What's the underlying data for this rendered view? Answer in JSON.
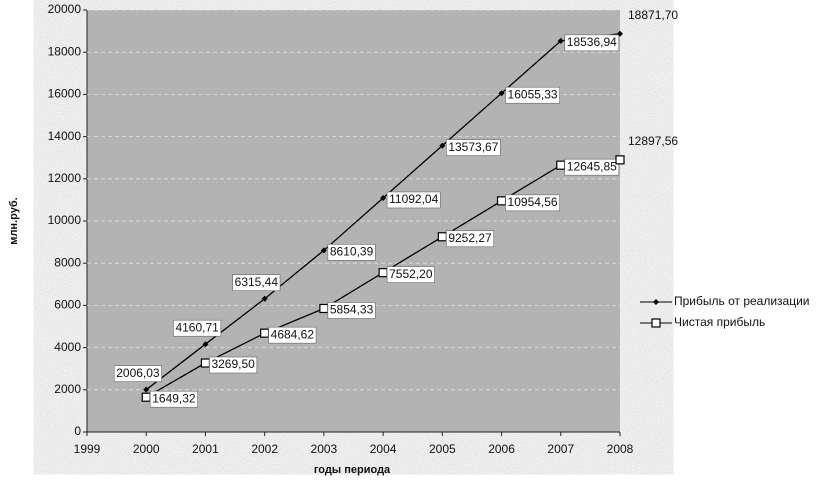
{
  "chart_data": {
    "type": "line",
    "xlabel": "годы периода",
    "ylabel": "млн.руб.",
    "xlim": [
      1999,
      2008
    ],
    "xticks": [
      1999,
      2000,
      2001,
      2002,
      2003,
      2004,
      2005,
      2006,
      2007,
      2008
    ],
    "ylim": [
      0,
      20000
    ],
    "yticks": [
      0,
      2000,
      4000,
      6000,
      8000,
      10000,
      12000,
      14000,
      16000,
      18000,
      20000
    ],
    "grid": true,
    "legend": "right",
    "series": [
      {
        "name": "Прибыль от реализации",
        "color": "#000000",
        "marker": "diamond",
        "x": [
          2000,
          2001,
          2002,
          2003,
          2004,
          2005,
          2006,
          2007,
          2008
        ],
        "values": [
          2006.03,
          4160.71,
          6315.44,
          8610.39,
          11092.04,
          13573.67,
          16055.33,
          18536.94,
          18871.7
        ],
        "value_labels": [
          "2006,03",
          "4160,71",
          "6315,44",
          "8610,39",
          "11092,04",
          "13573,67",
          "16055,33",
          "18536,94",
          "18871,70"
        ]
      },
      {
        "name": "Чистая прибыль",
        "color": "#000000",
        "marker": "square",
        "x": [
          2000,
          2001,
          2002,
          2003,
          2004,
          2005,
          2006,
          2007,
          2008
        ],
        "values": [
          1649.32,
          3269.5,
          4684.62,
          5854.33,
          7552.2,
          9252.27,
          10954.56,
          12645.85,
          12897.56
        ],
        "value_labels": [
          "1649,32",
          "3269,50",
          "4684,62",
          "5854,33",
          "7552,20",
          "9252,27",
          "10954,56",
          "12645,85",
          "12897,56"
        ]
      }
    ]
  }
}
